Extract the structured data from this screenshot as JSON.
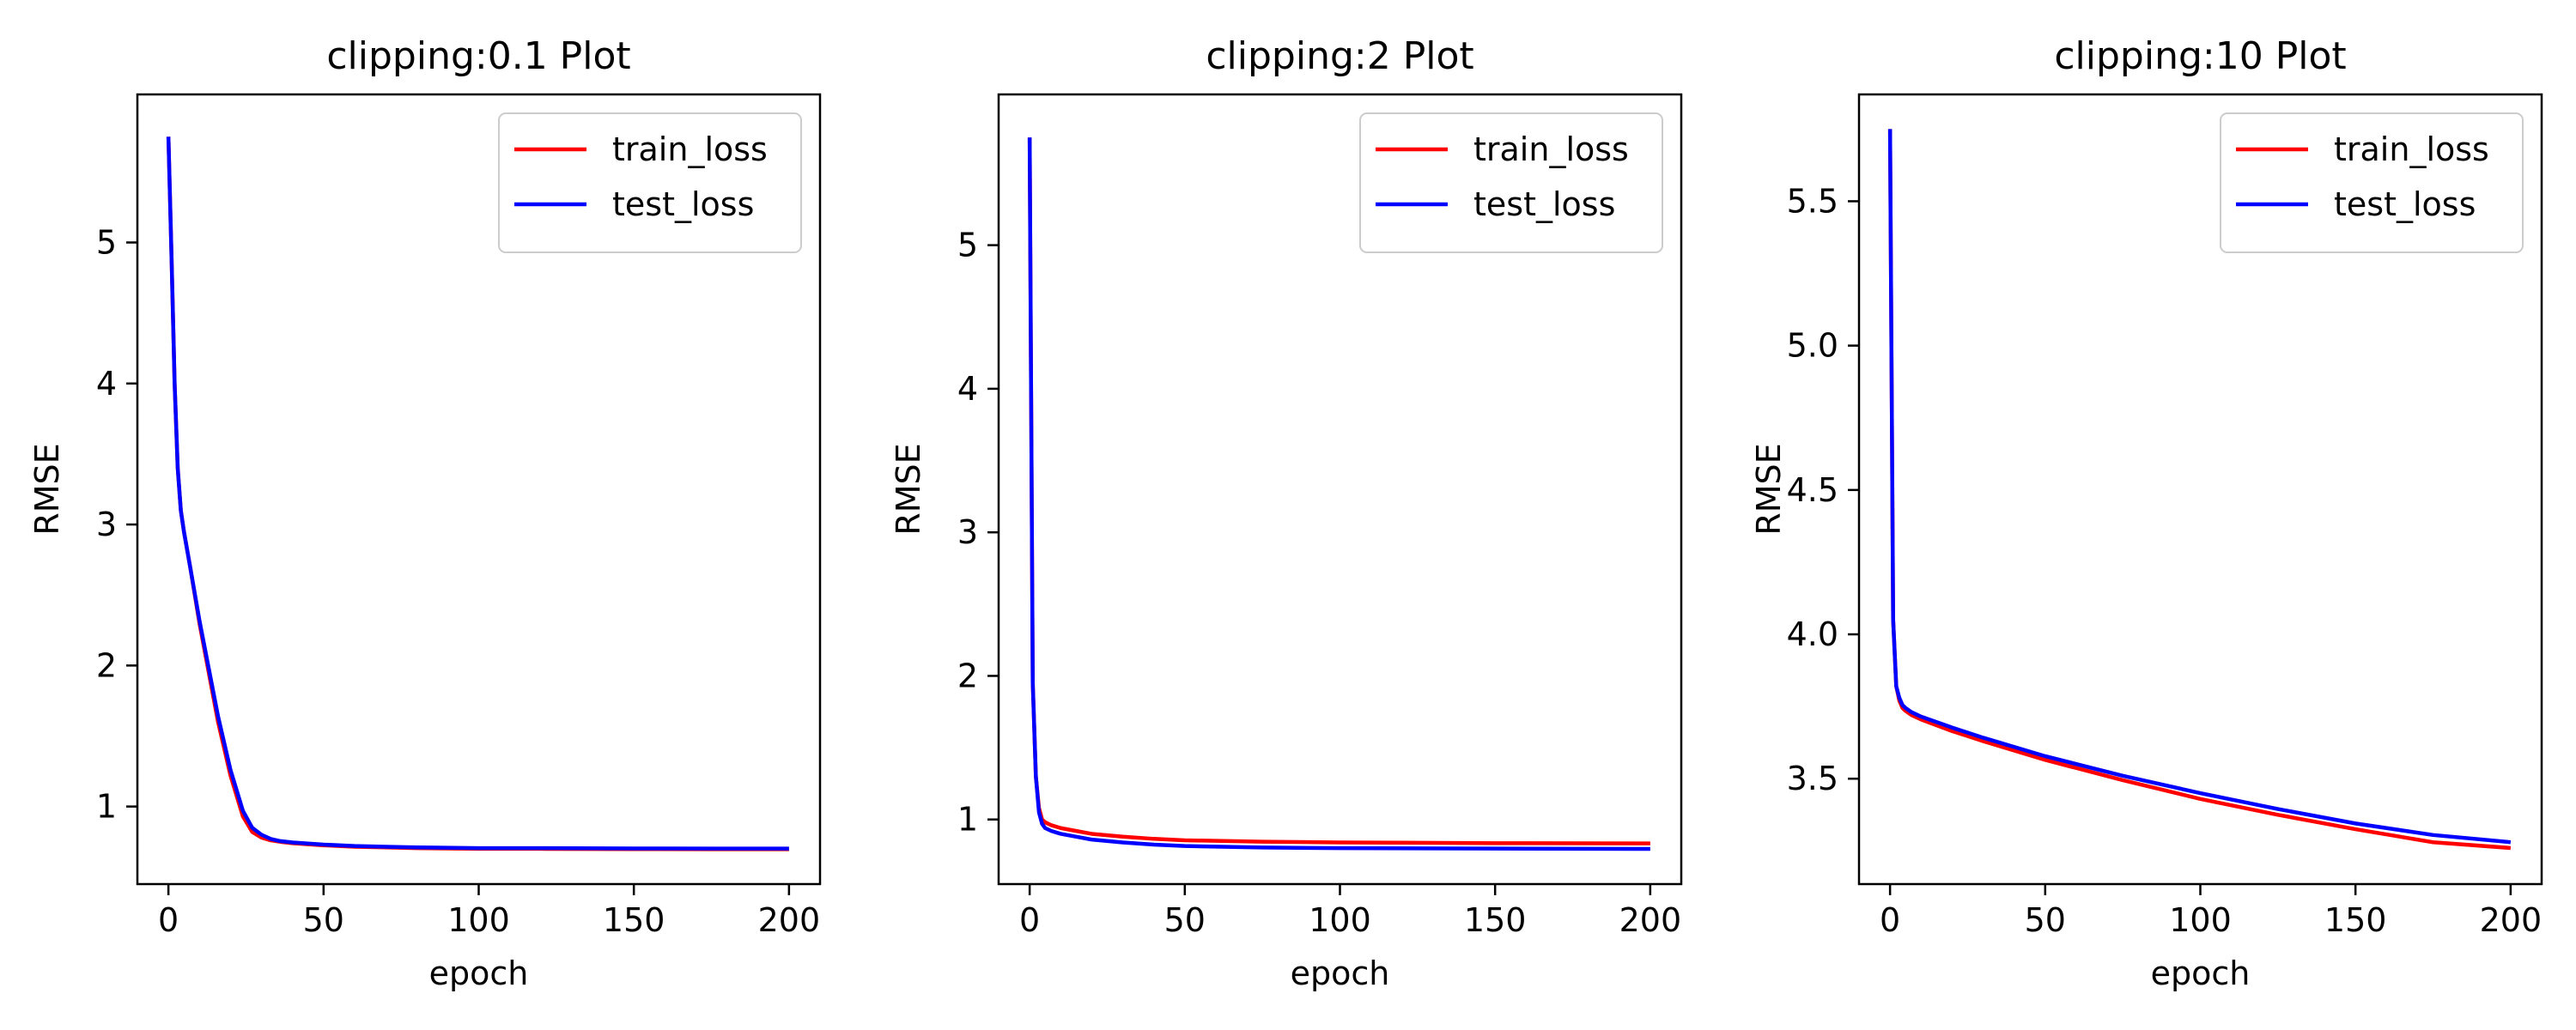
{
  "figure": {
    "background": "#ffffff"
  },
  "chart_data": [
    {
      "type": "line",
      "title": "clipping:0.1 Plot",
      "xlabel": "epoch",
      "ylabel": "RMSE",
      "xlim": [
        -10,
        210
      ],
      "ylim": [
        0.45,
        6.05
      ],
      "xticks": [
        0,
        50,
        100,
        150,
        200
      ],
      "yticks": [
        1,
        2,
        3,
        4,
        5
      ],
      "ytick_labels": [
        "1",
        "2",
        "3",
        "4",
        "5"
      ],
      "grid": false,
      "legend": "top-right",
      "series": [
        {
          "name": "train_loss",
          "color": "#ff0000",
          "x": [
            0,
            1,
            2,
            3,
            4,
            5,
            7,
            10,
            13,
            16,
            20,
            24,
            27,
            30,
            33,
            36,
            40,
            50,
            60,
            70,
            80,
            100,
            120,
            150,
            175,
            200
          ],
          "y": [
            5.75,
            4.9,
            4.0,
            3.4,
            3.1,
            2.95,
            2.7,
            2.3,
            1.95,
            1.6,
            1.22,
            0.93,
            0.82,
            0.78,
            0.76,
            0.75,
            0.74,
            0.725,
            0.715,
            0.71,
            0.705,
            0.7,
            0.7,
            0.698,
            0.697,
            0.697
          ]
        },
        {
          "name": "test_loss",
          "color": "#0000ff",
          "x": [
            0,
            1,
            2,
            3,
            4,
            5,
            7,
            10,
            13,
            16,
            20,
            24,
            27,
            30,
            33,
            36,
            40,
            50,
            60,
            70,
            80,
            100,
            120,
            150,
            175,
            200
          ],
          "y": [
            5.75,
            4.9,
            4.0,
            3.4,
            3.1,
            2.95,
            2.7,
            2.32,
            1.98,
            1.64,
            1.26,
            0.97,
            0.85,
            0.8,
            0.77,
            0.755,
            0.745,
            0.73,
            0.72,
            0.715,
            0.71,
            0.705,
            0.705,
            0.703,
            0.702,
            0.702
          ]
        }
      ]
    },
    {
      "type": "line",
      "title": "clipping:2 Plot",
      "xlabel": "epoch",
      "ylabel": "RMSE",
      "xlim": [
        -10,
        210
      ],
      "ylim": [
        0.55,
        6.05
      ],
      "xticks": [
        0,
        50,
        100,
        150,
        200
      ],
      "yticks": [
        1,
        2,
        3,
        4,
        5
      ],
      "ytick_labels": [
        "1",
        "2",
        "3",
        "4",
        "5"
      ],
      "grid": false,
      "legend": "top-right",
      "series": [
        {
          "name": "train_loss",
          "color": "#ff0000",
          "x": [
            0,
            1,
            2,
            3,
            4,
            5,
            7,
            10,
            15,
            20,
            30,
            40,
            50,
            75,
            100,
            150,
            200
          ],
          "y": [
            5.75,
            1.95,
            1.3,
            1.08,
            1.0,
            0.98,
            0.96,
            0.94,
            0.92,
            0.9,
            0.88,
            0.865,
            0.855,
            0.845,
            0.84,
            0.835,
            0.833
          ]
        },
        {
          "name": "test_loss",
          "color": "#0000ff",
          "x": [
            0,
            1,
            2,
            3,
            4,
            5,
            7,
            10,
            15,
            20,
            30,
            40,
            50,
            75,
            100,
            150,
            200
          ],
          "y": [
            5.75,
            1.95,
            1.3,
            1.05,
            0.97,
            0.94,
            0.92,
            0.9,
            0.88,
            0.86,
            0.84,
            0.825,
            0.815,
            0.805,
            0.8,
            0.797,
            0.795
          ]
        }
      ]
    },
    {
      "type": "line",
      "title": "clipping:10 Plot",
      "xlabel": "epoch",
      "ylabel": "RMSE",
      "xlim": [
        -10,
        210
      ],
      "ylim": [
        3.135,
        5.87
      ],
      "xticks": [
        0,
        50,
        100,
        150,
        200
      ],
      "yticks": [
        3.5,
        4.0,
        4.5,
        5.0,
        5.5
      ],
      "ytick_labels": [
        "3.5",
        "4.0",
        "4.5",
        "5.0",
        "5.5"
      ],
      "grid": false,
      "legend": "top-right",
      "series": [
        {
          "name": "train_loss",
          "color": "#ff0000",
          "x": [
            0,
            1,
            2,
            3,
            4,
            5,
            7,
            10,
            20,
            30,
            50,
            75,
            100,
            125,
            150,
            175,
            200
          ],
          "y": [
            5.75,
            4.05,
            3.82,
            3.77,
            3.745,
            3.735,
            3.72,
            3.705,
            3.665,
            3.63,
            3.565,
            3.495,
            3.43,
            3.375,
            3.325,
            3.28,
            3.26
          ]
        },
        {
          "name": "test_loss",
          "color": "#0000ff",
          "x": [
            0,
            1,
            2,
            3,
            4,
            5,
            7,
            10,
            20,
            30,
            50,
            75,
            100,
            125,
            150,
            175,
            200
          ],
          "y": [
            5.75,
            4.05,
            3.82,
            3.78,
            3.755,
            3.745,
            3.73,
            3.715,
            3.677,
            3.642,
            3.578,
            3.51,
            3.45,
            3.395,
            3.345,
            3.305,
            3.28
          ]
        }
      ]
    }
  ]
}
